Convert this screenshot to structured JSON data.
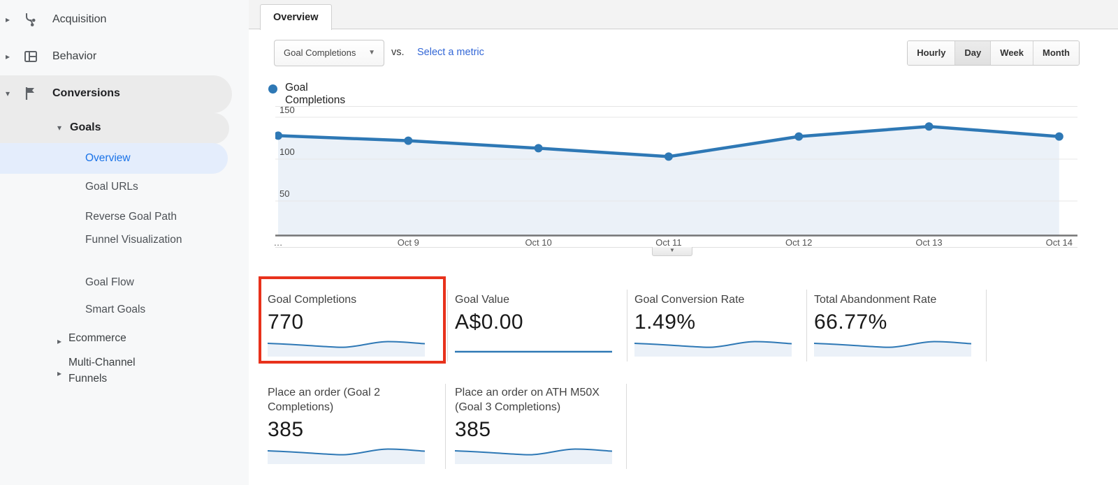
{
  "icons": {
    "chevron_right": "▸",
    "chevron_down": "▾",
    "caret_down": "▼",
    "handle_down": "▼"
  },
  "colors": {
    "accent_blue": "#1a73e8",
    "link_blue": "#3367d6",
    "chart_line": "#2e78b5",
    "chart_area_fill": "#ebf1f8",
    "annotation_red": "#e8321c",
    "active_item_bg": "#e4edfc",
    "section_pill_bg": "#ebebeb",
    "sidebar_bg": "#f7f8f9"
  },
  "sidebar": {
    "items": [
      {
        "label": "Acquisition"
      },
      {
        "label": "Behavior"
      },
      {
        "label": "Conversions"
      },
      {
        "label": "Goals"
      },
      {
        "label": "Overview"
      },
      {
        "label": "Goal URLs"
      },
      {
        "label": "Reverse Goal Path"
      },
      {
        "label": "Funnel Visualization"
      },
      {
        "label": "Goal Flow"
      },
      {
        "label": "Smart Goals"
      },
      {
        "label": "Ecommerce"
      },
      {
        "label": "Multi-Channel Funnels"
      }
    ],
    "active_item": "Overview"
  },
  "header": {
    "tab": "Overview"
  },
  "toolbar": {
    "metric_selector": "Goal Completions",
    "vs_label": "vs.",
    "select_metric_link": "Select a metric",
    "granularity": [
      "Hourly",
      "Day",
      "Week",
      "Month"
    ],
    "selected_granularity": "Day"
  },
  "chart_data": {
    "type": "line",
    "series": [
      {
        "name": "Goal Completions",
        "values": [
          128,
          122,
          113,
          103,
          127,
          139,
          127
        ]
      }
    ],
    "x": [
      "…",
      "Oct 9",
      "Oct 10",
      "Oct 11",
      "Oct 12",
      "Oct 13",
      "Oct 14"
    ],
    "ylim": [
      0,
      150
    ],
    "y_ticks": [
      50,
      100,
      150
    ],
    "grid": true,
    "legend_position": "top-left"
  },
  "cards": {
    "row1": [
      {
        "label": "Goal Completions",
        "value": "770",
        "spark": "wavy",
        "highlighted": true
      },
      {
        "label": "Goal Value",
        "value": "A$0.00",
        "spark": "flat"
      },
      {
        "label": "Goal Conversion Rate",
        "value": "1.49%",
        "spark": "wavy"
      },
      {
        "label": "Total Abandonment Rate",
        "value": "66.77%",
        "spark": "wavy"
      }
    ],
    "row2": [
      {
        "label": "Place an order (Goal 2 Completions)",
        "value": "385",
        "spark": "wavy"
      },
      {
        "label": "Place an order on ATH M50X (Goal 3 Completions)",
        "value": "385",
        "spark": "wavy"
      }
    ]
  }
}
